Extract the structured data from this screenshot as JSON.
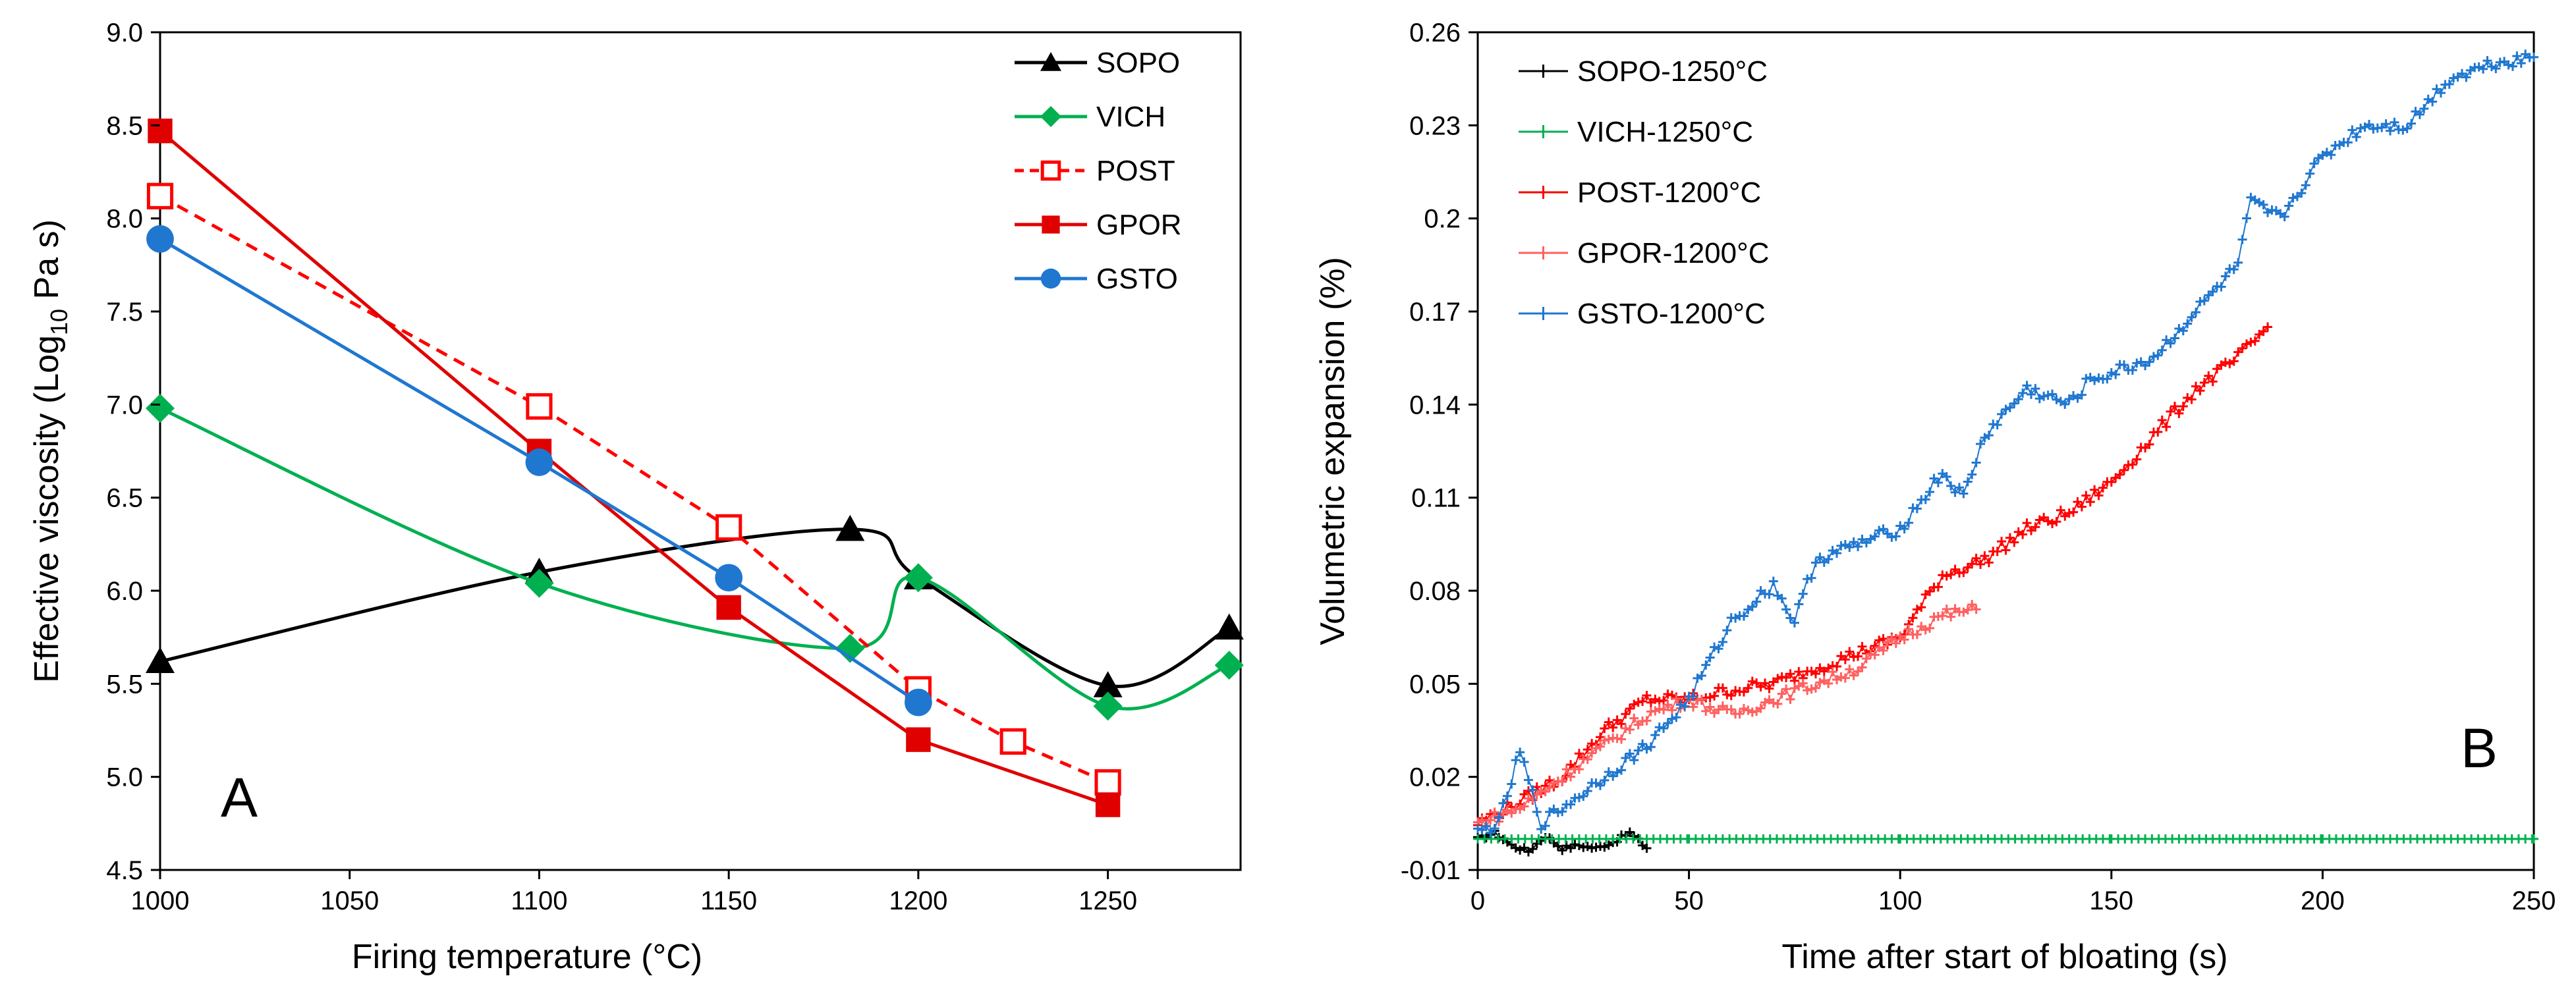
{
  "chart_data": [
    {
      "panel_label": "A",
      "type": "line",
      "xlabel": "Firing temperature (°C)",
      "ylabel_prefix": "Effective viscosity (Log",
      "ylabel_sub": "10",
      "ylabel_suffix": " Pa s)",
      "xlim": [
        1000,
        1285
      ],
      "ylim": [
        4.5,
        9.0
      ],
      "x_ticks": [
        "1000",
        "1050",
        "1100",
        "1150",
        "1200",
        "1250"
      ],
      "y_ticks": [
        "4.5",
        "5.0",
        "5.5",
        "6.0",
        "6.5",
        "7.0",
        "7.5",
        "8.0",
        "8.5",
        "9.0"
      ],
      "grid": false,
      "legend_position": "top-right",
      "series": [
        {
          "name": "SOPO",
          "color": "#000000",
          "marker": "triangle",
          "line": "solid",
          "smooth": true,
          "x": [
            1000,
            1100,
            1182,
            1200,
            1250,
            1282
          ],
          "y": [
            5.62,
            6.1,
            6.33,
            6.07,
            5.49,
            5.8
          ]
        },
        {
          "name": "VICH",
          "color": "#00B050",
          "marker": "diamond",
          "line": "solid",
          "smooth": true,
          "x": [
            1000,
            1100,
            1182,
            1200,
            1250,
            1282
          ],
          "y": [
            6.98,
            6.04,
            5.69,
            6.07,
            5.38,
            5.6
          ]
        },
        {
          "name": "POST",
          "color": "#FF0000",
          "marker": "square-open",
          "line": "dashed",
          "smooth": false,
          "x": [
            1000,
            1100,
            1150,
            1200,
            1225,
            1250
          ],
          "y": [
            8.12,
            6.99,
            6.34,
            5.47,
            5.19,
            4.97
          ]
        },
        {
          "name": "GPOR",
          "color": "#E00000",
          "marker": "square",
          "line": "solid",
          "smooth": false,
          "x": [
            1000,
            1100,
            1150,
            1200,
            1250
          ],
          "y": [
            8.47,
            6.75,
            5.91,
            5.2,
            4.85
          ]
        },
        {
          "name": "GSTO",
          "color": "#1F77D0",
          "marker": "circle",
          "line": "solid",
          "smooth": false,
          "x": [
            1000,
            1100,
            1150,
            1200
          ],
          "y": [
            7.89,
            6.69,
            6.07,
            5.4
          ]
        }
      ]
    },
    {
      "panel_label": "B",
      "type": "scatter",
      "xlabel": "Time after start of bloating (s)",
      "ylabel": "Volumetric expansion (%)",
      "xlim": [
        0,
        250
      ],
      "ylim": [
        -0.01,
        0.26
      ],
      "x_ticks": [
        "0",
        "50",
        "100",
        "150",
        "200",
        "250"
      ],
      "y_ticks": [
        "-0.01",
        "0.02",
        "0.05",
        "0.08",
        "0.11",
        "0.14",
        "0.17",
        "0.2",
        "0.23",
        "0.26"
      ],
      "grid": false,
      "legend_position": "top-left",
      "series": [
        {
          "name": "SOPO-1250°C",
          "color": "#000000",
          "marker": "plus",
          "x": [
            0,
            4,
            8,
            12,
            16,
            20,
            24,
            28,
            32,
            36,
            40
          ],
          "y": [
            0.0,
            0.002,
            -0.002,
            -0.004,
            0.001,
            -0.003,
            -0.002,
            -0.003,
            -0.001,
            0.002,
            -0.003
          ]
        },
        {
          "name": "VICH-1250°C",
          "color": "#00B050",
          "marker": "plus",
          "x": [
            0,
            50,
            100,
            150,
            200,
            250
          ],
          "y": [
            0.0,
            0.0,
            0.0,
            0.0,
            0.0,
            0.0
          ]
        },
        {
          "name": "POST-1200°C",
          "color": "#FF0000",
          "marker": "plus",
          "x": [
            0,
            10,
            20,
            30,
            40,
            50,
            60,
            70,
            80,
            90,
            100,
            110,
            120,
            130,
            140,
            150,
            160,
            170,
            180,
            187
          ],
          "y": [
            0.005,
            0.012,
            0.02,
            0.035,
            0.045,
            0.045,
            0.048,
            0.05,
            0.055,
            0.06,
            0.065,
            0.085,
            0.09,
            0.1,
            0.105,
            0.115,
            0.13,
            0.145,
            0.155,
            0.165
          ]
        },
        {
          "name": "GPOR-1200°C",
          "color": "#FF6060",
          "marker": "plus",
          "x": [
            0,
            10,
            20,
            30,
            40,
            50,
            60,
            70,
            80,
            90,
            100,
            110,
            118
          ],
          "y": [
            0.005,
            0.01,
            0.02,
            0.03,
            0.04,
            0.045,
            0.04,
            0.045,
            0.05,
            0.055,
            0.065,
            0.072,
            0.074
          ]
        },
        {
          "name": "GSTO-1200°C",
          "color": "#1F77D0",
          "marker": "plus",
          "x": [
            0,
            5,
            10,
            15,
            20,
            25,
            30,
            40,
            50,
            60,
            70,
            75,
            80,
            90,
            100,
            110,
            115,
            120,
            130,
            140,
            145,
            150,
            160,
            170,
            180,
            183,
            190,
            200,
            210,
            220,
            230,
            240,
            250
          ],
          "y": [
            0.002,
            0.005,
            0.028,
            0.005,
            0.01,
            0.015,
            0.02,
            0.03,
            0.045,
            0.07,
            0.082,
            0.07,
            0.09,
            0.095,
            0.1,
            0.118,
            0.11,
            0.13,
            0.145,
            0.14,
            0.148,
            0.15,
            0.155,
            0.17,
            0.185,
            0.205,
            0.2,
            0.22,
            0.23,
            0.23,
            0.245,
            0.25,
            0.252
          ]
        }
      ]
    }
  ]
}
